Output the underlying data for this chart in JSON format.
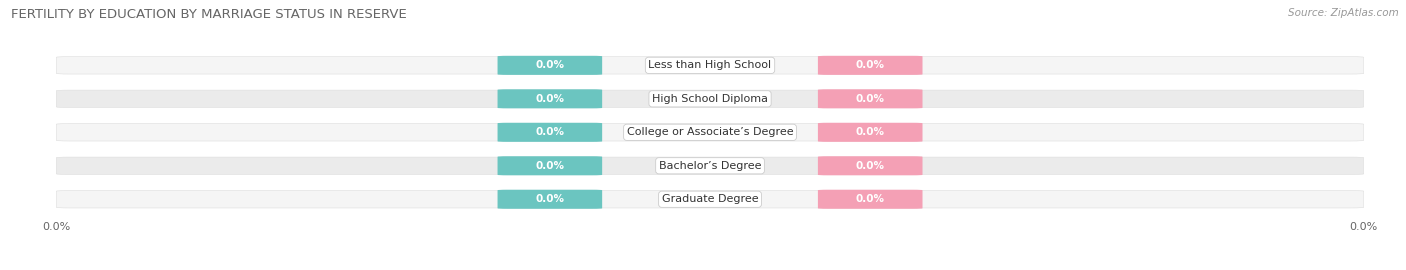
{
  "title": "FERTILITY BY EDUCATION BY MARRIAGE STATUS IN RESERVE",
  "source": "Source: ZipAtlas.com",
  "categories": [
    "Less than High School",
    "High School Diploma",
    "College or Associate’s Degree",
    "Bachelor’s Degree",
    "Graduate Degree"
  ],
  "married_values": [
    0.0,
    0.0,
    0.0,
    0.0,
    0.0
  ],
  "unmarried_values": [
    0.0,
    0.0,
    0.0,
    0.0,
    0.0
  ],
  "married_color": "#6bc5c0",
  "unmarried_color": "#f4a0b5",
  "row_bg_light": "#f5f5f5",
  "row_bg_dark": "#ebebeb",
  "title_color": "#666666",
  "source_color": "#999999",
  "title_fontsize": 9.5,
  "source_fontsize": 7.5,
  "cat_fontsize": 8.0,
  "val_fontsize": 7.5,
  "figwidth": 14.06,
  "figheight": 2.7,
  "dpi": 100
}
